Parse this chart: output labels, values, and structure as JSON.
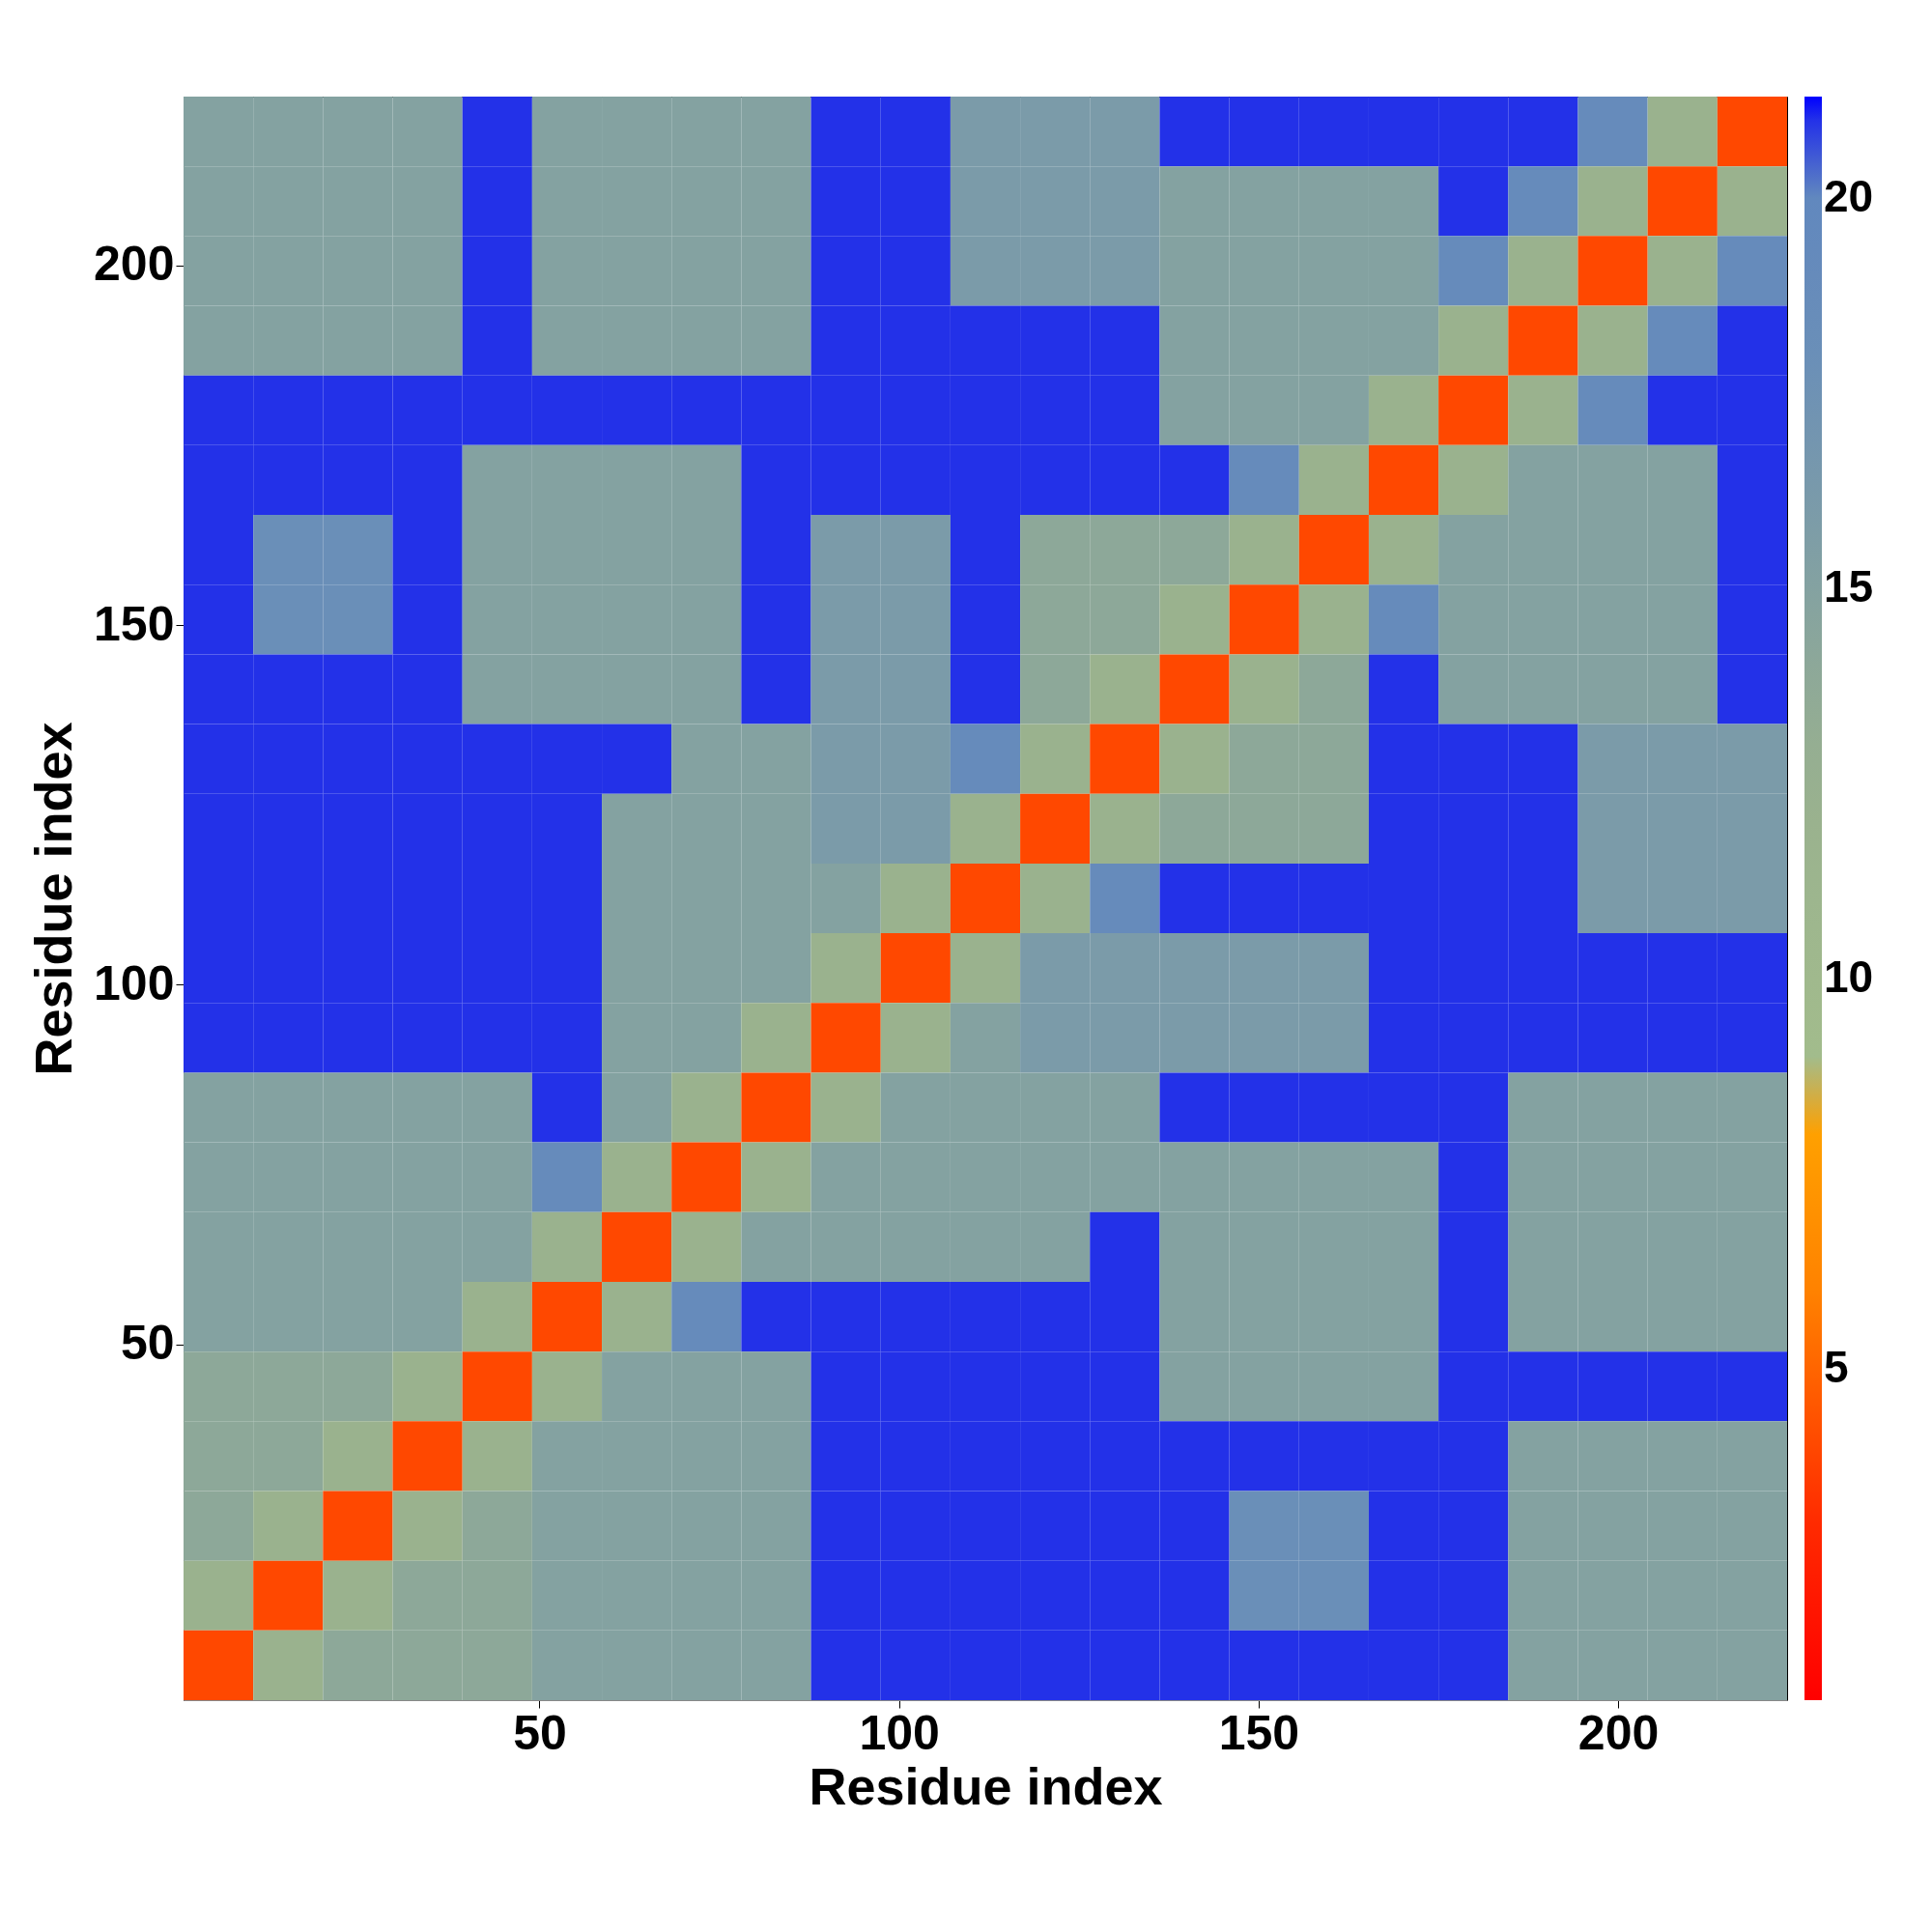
{
  "chart_data": {
    "type": "heatmap",
    "xlabel": "Residue index",
    "ylabel": "Residue index",
    "xlim": [
      0.5,
      223.5
    ],
    "xticks": [
      50,
      100,
      150,
      200
    ],
    "ylim": [
      0.5,
      223.5
    ],
    "yticks": [
      50,
      100,
      150,
      200
    ],
    "clim": [
      0.75,
      21.3
    ],
    "cticks": [
      5,
      10,
      15,
      20
    ],
    "grid": false,
    "cells": [
      [
        15,
        15,
        15,
        15,
        21,
        15,
        15,
        15,
        15,
        21,
        21,
        16,
        16,
        16,
        21,
        21,
        21,
        21,
        21,
        21,
        19,
        12,
        4
      ],
      [
        15,
        15,
        15,
        15,
        21,
        15,
        15,
        15,
        15,
        21,
        21,
        16,
        16,
        16,
        15,
        15,
        15,
        15,
        21,
        19,
        12,
        4,
        12
      ],
      [
        15,
        15,
        15,
        15,
        21,
        15,
        15,
        15,
        15,
        21,
        21,
        16,
        16,
        16,
        15,
        15,
        15,
        15,
        19,
        12,
        4,
        12,
        19
      ],
      [
        15,
        15,
        15,
        15,
        21,
        15,
        15,
        15,
        15,
        21,
        21,
        21,
        21,
        21,
        15,
        15,
        15,
        15,
        12,
        4,
        12,
        19,
        21
      ],
      [
        21,
        21,
        21,
        21,
        21,
        21,
        21,
        21,
        21,
        21,
        21,
        21,
        21,
        21,
        15,
        15,
        15,
        12,
        4,
        12,
        19,
        21,
        21
      ],
      [
        21,
        21,
        21,
        21,
        15,
        15,
        15,
        15,
        21,
        21,
        21,
        21,
        21,
        21,
        21,
        19,
        12,
        4,
        12,
        15,
        15,
        15,
        21
      ],
      [
        21,
        18,
        18,
        21,
        15,
        15,
        15,
        15,
        21,
        16,
        16,
        21,
        14,
        14,
        14,
        12,
        4,
        12,
        15,
        15,
        15,
        15,
        21
      ],
      [
        21,
        18,
        18,
        21,
        15,
        15,
        15,
        15,
        21,
        16,
        16,
        21,
        14,
        14,
        12,
        4,
        12,
        19,
        15,
        15,
        15,
        15,
        21
      ],
      [
        21,
        21,
        21,
        21,
        15,
        15,
        15,
        15,
        21,
        16,
        16,
        21,
        14,
        12,
        4,
        12,
        14,
        21,
        15,
        15,
        15,
        15,
        21
      ],
      [
        21,
        21,
        21,
        21,
        21,
        21,
        21,
        15,
        15,
        16,
        16,
        19,
        12,
        4,
        12,
        14,
        14,
        21,
        21,
        21,
        16,
        16,
        16
      ],
      [
        21,
        21,
        21,
        21,
        21,
        21,
        15,
        15,
        15,
        16,
        16,
        12,
        4,
        12,
        14,
        14,
        14,
        21,
        21,
        21,
        16,
        16,
        16
      ],
      [
        21,
        21,
        21,
        21,
        21,
        21,
        15,
        15,
        15,
        15,
        12,
        4,
        12,
        19,
        21,
        21,
        21,
        21,
        21,
        21,
        16,
        16,
        16
      ],
      [
        21,
        21,
        21,
        21,
        21,
        21,
        15,
        15,
        15,
        12,
        4,
        12,
        16,
        16,
        16,
        16,
        16,
        21,
        21,
        21,
        21,
        21,
        21
      ],
      [
        21,
        21,
        21,
        21,
        21,
        21,
        15,
        15,
        12,
        4,
        12,
        15,
        16,
        16,
        16,
        16,
        16,
        21,
        21,
        21,
        21,
        21,
        21
      ],
      [
        15,
        15,
        15,
        15,
        15,
        21,
        15,
        12,
        4,
        12,
        15,
        15,
        15,
        15,
        21,
        21,
        21,
        21,
        21,
        15,
        15,
        15,
        15
      ],
      [
        15,
        15,
        15,
        15,
        15,
        19,
        12,
        4,
        12,
        15,
        15,
        15,
        15,
        15,
        15,
        15,
        15,
        15,
        21,
        15,
        15,
        15,
        15
      ],
      [
        15,
        15,
        15,
        15,
        15,
        12,
        4,
        12,
        15,
        15,
        15,
        15,
        15,
        21,
        15,
        15,
        15,
        15,
        21,
        15,
        15,
        15,
        15
      ],
      [
        15,
        15,
        15,
        15,
        12,
        4,
        12,
        19,
        21,
        21,
        21,
        21,
        21,
        21,
        15,
        15,
        15,
        15,
        21,
        15,
        15,
        15,
        15
      ],
      [
        14,
        14,
        14,
        12,
        4,
        12,
        15,
        15,
        15,
        21,
        21,
        21,
        21,
        21,
        15,
        15,
        15,
        15,
        21,
        21,
        21,
        21,
        21
      ],
      [
        14,
        14,
        12,
        4,
        12,
        15,
        15,
        15,
        15,
        21,
        21,
        21,
        21,
        21,
        21,
        21,
        21,
        21,
        21,
        15,
        15,
        15,
        15
      ],
      [
        14,
        12,
        4,
        12,
        14,
        15,
        15,
        15,
        15,
        21,
        21,
        21,
        21,
        21,
        21,
        18,
        18,
        21,
        21,
        15,
        15,
        15,
        15
      ],
      [
        12,
        4,
        12,
        14,
        14,
        15,
        15,
        15,
        15,
        21,
        21,
        21,
        21,
        21,
        21,
        18,
        18,
        21,
        21,
        15,
        15,
        15,
        15
      ],
      [
        4,
        12,
        14,
        14,
        14,
        15,
        15,
        15,
        15,
        21,
        21,
        21,
        21,
        21,
        21,
        21,
        21,
        21,
        21,
        15,
        15,
        15,
        15
      ]
    ]
  }
}
